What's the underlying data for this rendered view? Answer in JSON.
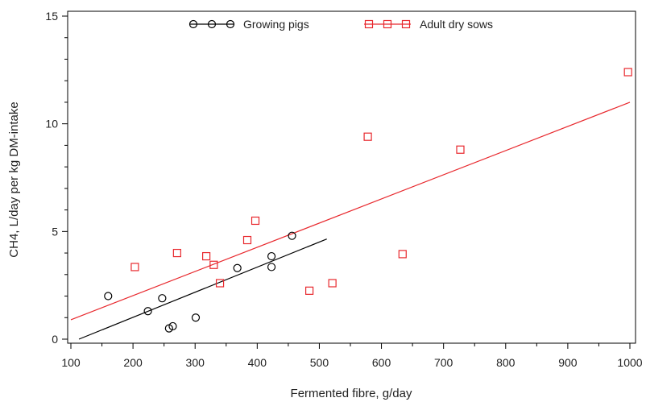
{
  "chart_data": {
    "type": "scatter",
    "title": "",
    "xlabel": "Fermented fibre, g/day",
    "ylabel": "CH4, L/day per kg DM-intake",
    "xlim": [
      100,
      1000
    ],
    "ylim": [
      0,
      15
    ],
    "x_major_ticks": [
      100,
      200,
      300,
      400,
      500,
      600,
      700,
      800,
      900,
      1000
    ],
    "x_minor_ticks": [
      150,
      250,
      350,
      450,
      550,
      650,
      750,
      850,
      950
    ],
    "y_major_ticks": [
      0,
      5,
      10,
      15
    ],
    "y_minor_ticks": [
      1,
      2,
      3,
      4,
      6,
      7,
      8,
      9,
      11,
      12,
      13,
      14
    ],
    "grid": false,
    "legend_position": "top-center",
    "series": [
      {
        "name": "Growing pigs",
        "marker": "circle",
        "color": "#000000",
        "points": [
          [
            160,
            2.0
          ],
          [
            224,
            1.3
          ],
          [
            247,
            1.9
          ],
          [
            258,
            0.5
          ],
          [
            264,
            0.6
          ],
          [
            301,
            1.0
          ],
          [
            368,
            3.3
          ],
          [
            423,
            3.85
          ],
          [
            423,
            3.35
          ],
          [
            456,
            4.8
          ]
        ],
        "fit_line": [
          [
            113,
            0.0
          ],
          [
            512,
            4.65
          ]
        ]
      },
      {
        "name": "Adult dry sows",
        "marker": "square",
        "color": "#e8282d",
        "points": [
          [
            203,
            3.35
          ],
          [
            271,
            4.0
          ],
          [
            318,
            3.85
          ],
          [
            330,
            3.45
          ],
          [
            340,
            2.6
          ],
          [
            384,
            4.6
          ],
          [
            397,
            5.5
          ],
          [
            484,
            2.25
          ],
          [
            521,
            2.6
          ],
          [
            578,
            9.4
          ],
          [
            634,
            3.95
          ],
          [
            727,
            8.8
          ],
          [
            997,
            12.4
          ]
        ],
        "fit_line": [
          [
            100,
            0.9
          ],
          [
            1000,
            11.0
          ]
        ]
      }
    ]
  }
}
